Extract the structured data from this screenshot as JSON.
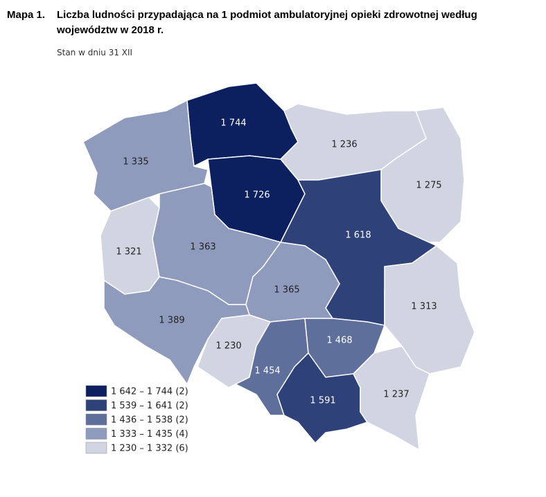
{
  "header": {
    "number": "Mapa 1.",
    "title_lines": [
      "Liczba ludności przypadająca na 1 podmiot ambulatoryjnej opieki zdrowotnej według",
      "województw w 2018 r."
    ],
    "subtitle": "Stan w dniu 31 XII"
  },
  "regions": [
    {
      "label": "1 744",
      "color": "#0c1f5e"
    },
    {
      "label": "1 335",
      "color": "#8f9bbd"
    },
    {
      "label": "1 236",
      "color": "#d1d5e1"
    },
    {
      "label": "1 275",
      "color": "#d1d5e1"
    },
    {
      "label": "1 726",
      "color": "#0c1f5e"
    },
    {
      "label": "1 321",
      "color": "#d1d5e1"
    },
    {
      "label": "1 363",
      "color": "#8f9bbd"
    },
    {
      "label": "1 618",
      "color": "#2e4279"
    },
    {
      "label": "1 365",
      "color": "#8f9bbd"
    },
    {
      "label": "1 389",
      "color": "#8f9bbd"
    },
    {
      "label": "1 230",
      "color": "#d1d5e1"
    },
    {
      "label": "1 454",
      "color": "#5f6f9c"
    },
    {
      "label": "1 468",
      "color": "#5f6f9c"
    },
    {
      "label": "1 313",
      "color": "#d1d5e1"
    },
    {
      "label": "1 591",
      "color": "#2e4279"
    },
    {
      "label": "1 237",
      "color": "#d1d5e1"
    }
  ],
  "legend": [
    {
      "label": "1 642 – 1 744 (2)",
      "color": "#0c1f5e"
    },
    {
      "label": "1 539 – 1 641 (2)",
      "color": "#2e4279"
    },
    {
      "label": "1 436 – 1 538 (2)",
      "color": "#5f6f9c"
    },
    {
      "label": "1 333 – 1 435 (4)",
      "color": "#8f9bbd"
    },
    {
      "label": "1 230 – 1 332 (6)",
      "color": "#d1d5e1"
    }
  ]
}
